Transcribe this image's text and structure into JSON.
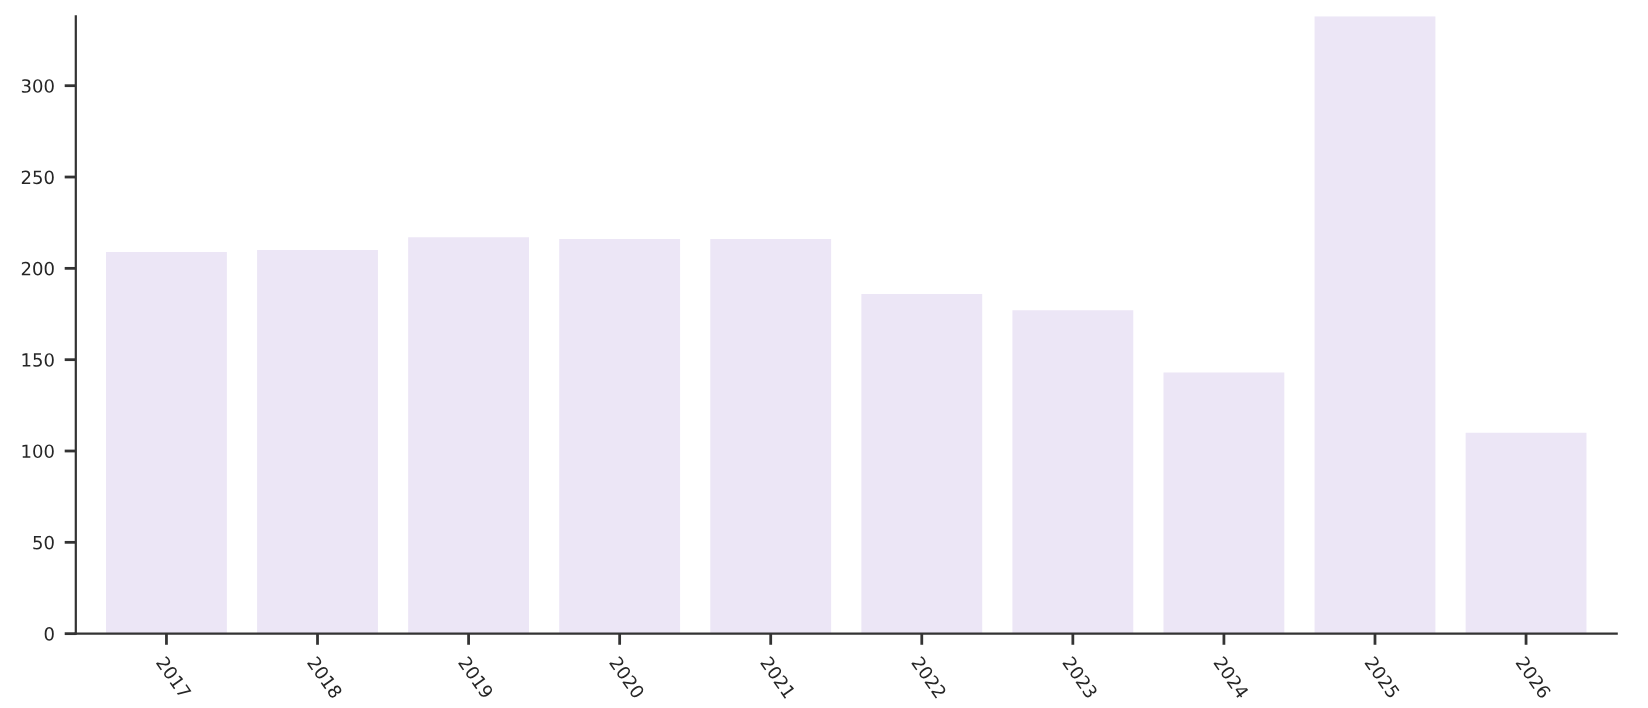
{
  "chart_data": {
    "type": "bar",
    "categories": [
      "2017",
      "2018",
      "2019",
      "2020",
      "2021",
      "2022",
      "2023",
      "2024",
      "2025",
      "2026"
    ],
    "values": [
      209,
      210,
      217,
      216,
      216,
      186,
      177,
      143,
      338,
      110
    ],
    "color": "#ece6f6",
    "ylim": [
      0,
      338
    ],
    "yticks": [
      0,
      50,
      100,
      150,
      200,
      250,
      300
    ],
    "grid": false,
    "legend": false
  }
}
